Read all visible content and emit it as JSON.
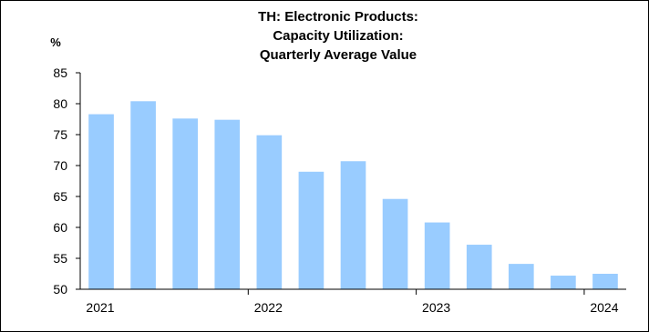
{
  "chart_data": {
    "type": "bar",
    "title_lines": [
      "TH: Electronic Products:",
      "Capacity Utilization:",
      "Quarterly Average Value"
    ],
    "ylabel": "%",
    "xlabel": "",
    "ylim": [
      50,
      85
    ],
    "yticks": [
      "50",
      "55",
      "60",
      "65",
      "70",
      "75",
      "80",
      "85"
    ],
    "categories": [
      "2021-Q1",
      "2021-Q2",
      "2021-Q3",
      "2021-Q4",
      "2022-Q1",
      "2022-Q2",
      "2022-Q3",
      "2022-Q4",
      "2023-Q1",
      "2023-Q2",
      "2023-Q3",
      "2023-Q4",
      "2024-Q1"
    ],
    "values": [
      78.3,
      80.4,
      77.6,
      77.4,
      74.9,
      69.0,
      70.7,
      64.6,
      60.8,
      57.2,
      54.1,
      52.2,
      52.5
    ],
    "xticks": [
      {
        "label": "2021",
        "at_category": 0
      },
      {
        "label": "2022",
        "at_category": 4
      },
      {
        "label": "2023",
        "at_category": 8
      },
      {
        "label": "2024",
        "at_category": 12
      }
    ],
    "bar_color": "#99ccff",
    "grid": false,
    "legend": "none"
  }
}
